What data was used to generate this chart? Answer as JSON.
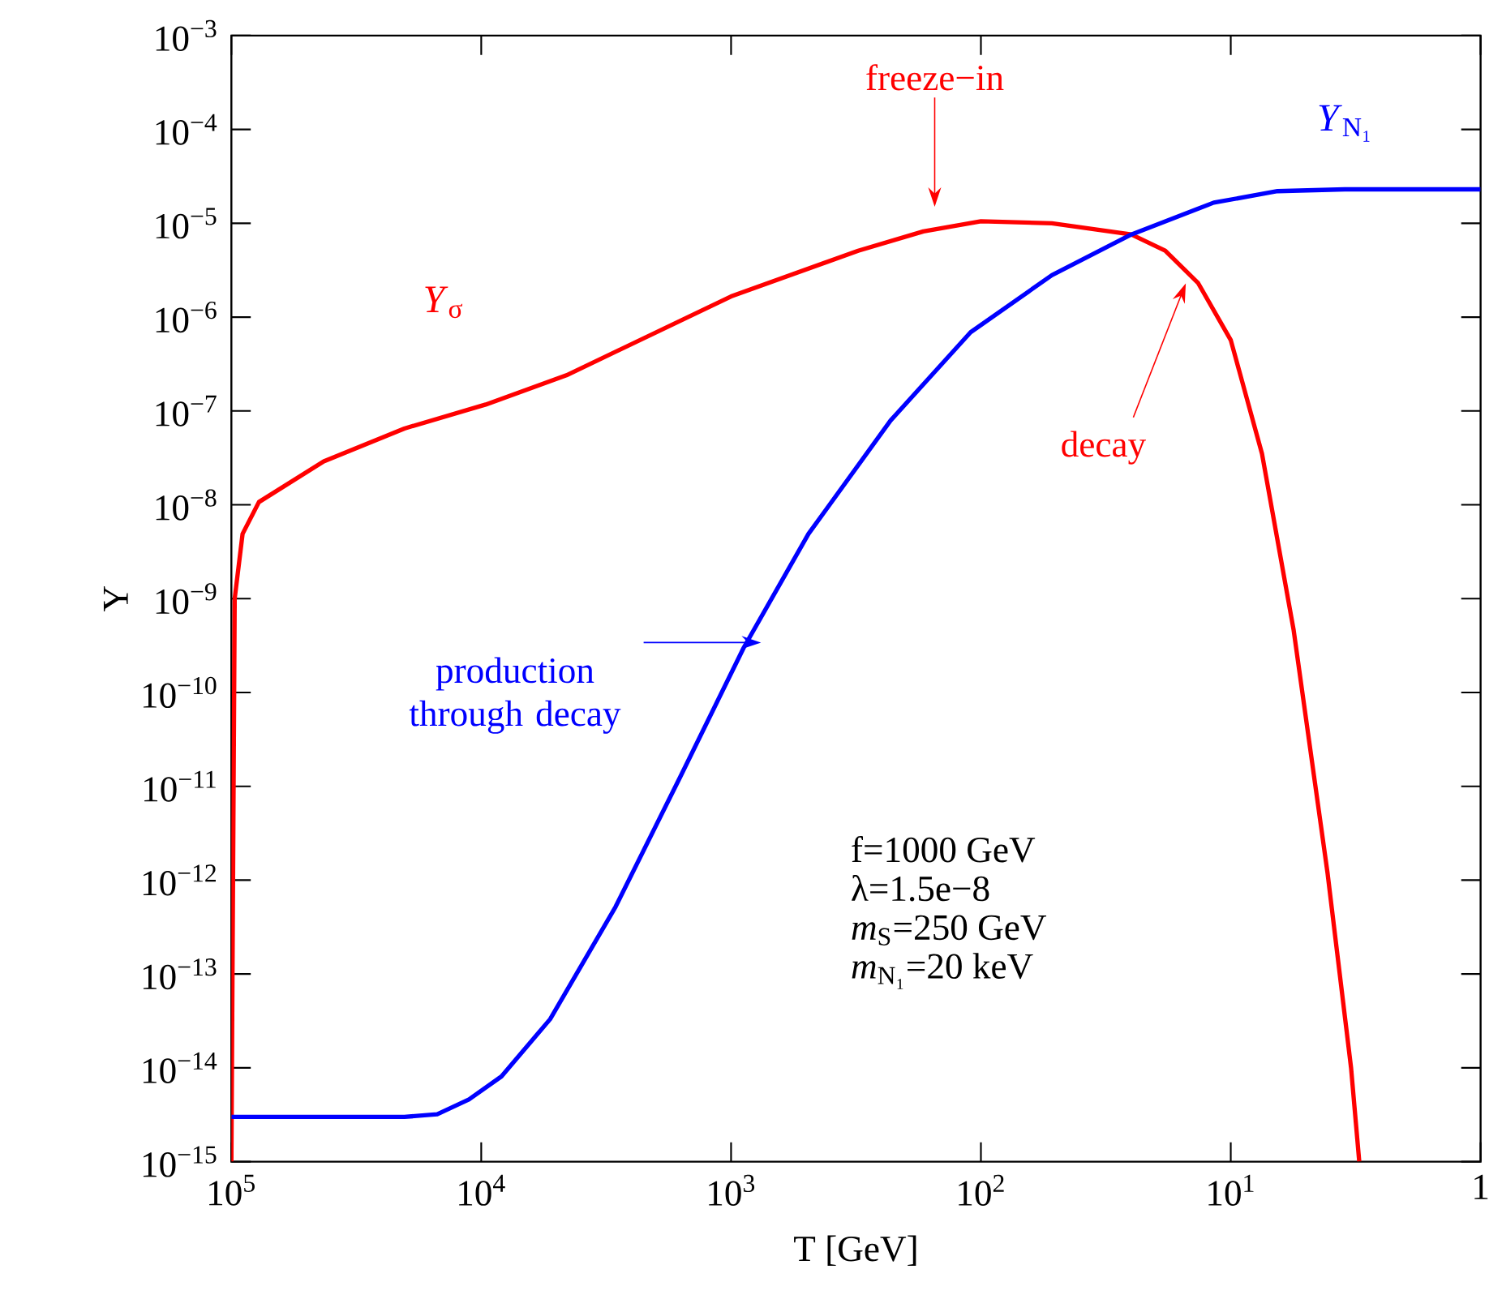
{
  "chart_data": {
    "type": "line",
    "xlabel": "T [GeV]",
    "ylabel": "Y",
    "log": "xy",
    "grid": false,
    "legend": false,
    "marker": "none",
    "line_style": "solid",
    "xlim": [
      100000,
      1
    ],
    "xticks": [
      {
        "value": 100000,
        "label": "10$^{5}$"
      },
      {
        "value": 10000,
        "label": "10$^{4}$"
      },
      {
        "value": 1000,
        "label": "10$^{3}$"
      },
      {
        "value": 100,
        "label": "10$^{2}$"
      },
      {
        "value": 10,
        "label": "10$^{1}$"
      },
      1
    ],
    "ylim": [
      1e-15,
      0.001
    ],
    "yticks": [
      {
        "value": 1e-15,
        "label": "10$^{−15}$"
      },
      {
        "value": 1e-14,
        "label": "10$^{−14}$"
      },
      {
        "value": 1e-13,
        "label": "10$^{−13}$"
      },
      {
        "value": 1e-12,
        "label": "10$^{−12}$"
      },
      {
        "value": 1e-11,
        "label": "10$^{−11}$"
      },
      {
        "value": 1e-10,
        "label": "10$^{−10}$"
      },
      {
        "value": 1e-09,
        "label": "10$^{−9}$"
      },
      {
        "value": 1e-08,
        "label": "10$^{−8}$"
      },
      {
        "value": 1e-07,
        "label": "10$^{−7}$"
      },
      {
        "value": 1e-06,
        "label": "10$^{−6}$"
      },
      {
        "value": 1e-05,
        "label": "10$^{−5}$"
      },
      {
        "value": 0.0001,
        "label": "10$^{−4}$"
      },
      {
        "value": 0.001,
        "label": "10$^{−3}$"
      }
    ],
    "series": [
      {
        "name": "*Y*$_{σ}$",
        "color": "#ff0000",
        "x": [
          100000,
          97000,
          90200,
          77600,
          42700,
          20300,
          9600,
          4560,
          1000,
          310,
          170,
          100,
          52,
          25,
          18.3,
          13.5,
          10,
          7.5,
          5.6,
          4.1,
          3.3,
          3.06
        ],
        "values": [
          1e-15,
          1e-09,
          4.9e-09,
          1.07e-08,
          2.9e-08,
          6.5e-08,
          1.17e-07,
          2.4e-07,
          1.66e-06,
          5.1e-06,
          8.2e-06,
          1.05e-05,
          1e-05,
          7.6e-06,
          5.1e-06,
          2.3e-06,
          5.7e-07,
          3.5e-08,
          4.6e-10,
          1.2e-12,
          1e-14,
          1e-15
        ]
      },
      {
        "name": "*Y*$_{N₁}$",
        "color": "#0000ff",
        "x": [
          100000,
          20300,
          15000,
          11200,
          8300,
          5300,
          2900,
          1600,
          890,
          490,
          230,
          110,
          52,
          25,
          11.7,
          6.5,
          3.5,
          1
        ],
        "values": [
          3e-15,
          3e-15,
          3.2e-15,
          4.6e-15,
          8.1e-15,
          3.3e-14,
          5.2e-13,
          1.25e-11,
          3e-10,
          4.9e-09,
          7.9e-08,
          6.9e-07,
          2.8e-06,
          7.6e-06,
          1.66e-05,
          2.2e-05,
          2.3e-05,
          2.3e-05
        ]
      }
    ],
    "annotations": [
      "freeze−in",
      "decay",
      "production through decay",
      "f=1000 GeV",
      "λ=1.5e−8",
      "*m*$_{S}$=250 GeV",
      "*m*$_{N₁}$=20 keV"
    ]
  }
}
